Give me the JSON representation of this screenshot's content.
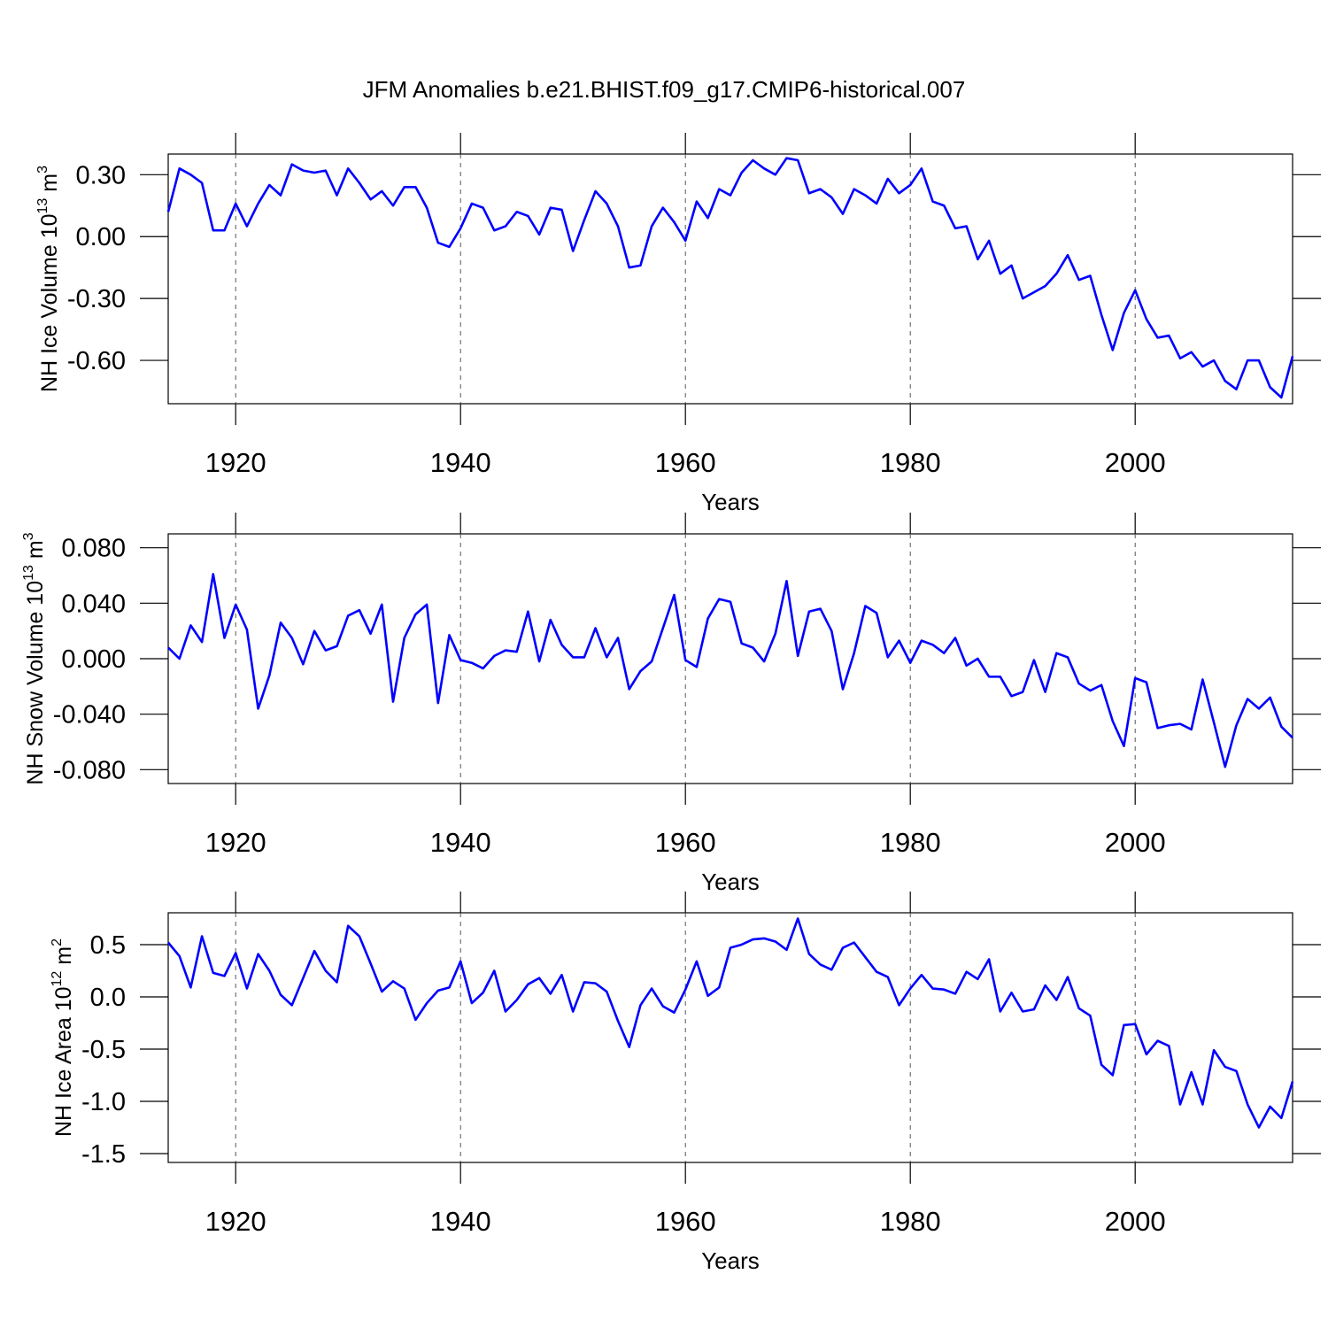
{
  "title": "JFM Anomalies b.e21.BHIST.f09_g17.CMIP6-historical.007",
  "chart_data": [
    {
      "type": "line",
      "ylabel": [
        "NH Ice Volume 10",
        "13",
        " m",
        "3"
      ],
      "xlabel": "Years",
      "color": "#0000ff",
      "grid": true,
      "x": [
        1914,
        1915,
        1916,
        1917,
        1918,
        1919,
        1920,
        1921,
        1922,
        1923,
        1924,
        1925,
        1926,
        1927,
        1928,
        1929,
        1930,
        1931,
        1932,
        1933,
        1934,
        1935,
        1936,
        1937,
        1938,
        1939,
        1940,
        1941,
        1942,
        1943,
        1944,
        1945,
        1946,
        1947,
        1948,
        1949,
        1950,
        1951,
        1952,
        1953,
        1954,
        1955,
        1956,
        1957,
        1958,
        1959,
        1960,
        1961,
        1962,
        1963,
        1964,
        1965,
        1966,
        1967,
        1968,
        1969,
        1970,
        1971,
        1972,
        1973,
        1974,
        1975,
        1976,
        1977,
        1978,
        1979,
        1980,
        1981,
        1982,
        1983,
        1984,
        1985,
        1986,
        1987,
        1988,
        1989,
        1990,
        1991,
        1992,
        1993,
        1994,
        1995,
        1996,
        1997,
        1998,
        1999,
        2000,
        2001,
        2002,
        2003,
        2004,
        2005,
        2006,
        2007,
        2008,
        2009,
        2010,
        2011,
        2012,
        2013,
        2014
      ],
      "values": [
        0.12,
        0.33,
        0.3,
        0.26,
        0.03,
        0.03,
        0.16,
        0.05,
        0.16,
        0.25,
        0.2,
        0.35,
        0.32,
        0.31,
        0.32,
        0.2,
        0.33,
        0.26,
        0.18,
        0.22,
        0.15,
        0.24,
        0.24,
        0.14,
        -0.03,
        -0.05,
        0.04,
        0.16,
        0.14,
        0.03,
        0.05,
        0.12,
        0.1,
        0.01,
        0.14,
        0.13,
        -0.07,
        0.08,
        0.22,
        0.16,
        0.05,
        -0.15,
        -0.14,
        0.05,
        0.14,
        0.07,
        -0.02,
        0.17,
        0.09,
        0.23,
        0.2,
        0.31,
        0.37,
        0.33,
        0.3,
        0.38,
        0.37,
        0.21,
        0.23,
        0.19,
        0.11,
        0.23,
        0.2,
        0.16,
        0.28,
        0.21,
        0.25,
        0.33,
        0.17,
        0.15,
        0.04,
        0.05,
        -0.11,
        -0.02,
        -0.18,
        -0.14,
        -0.3,
        -0.27,
        -0.24,
        -0.18,
        -0.09,
        -0.21,
        -0.19,
        -0.38,
        -0.55,
        -0.37,
        -0.26,
        -0.4,
        -0.49,
        -0.48,
        -0.59,
        -0.56,
        -0.63,
        -0.6,
        -0.7,
        -0.74,
        -0.6,
        -0.6,
        -0.73,
        -0.78,
        -0.58
      ],
      "xlim": [
        1914,
        2014
      ],
      "xticks": [
        1920,
        1940,
        1960,
        1980,
        2000
      ],
      "ylim": [
        -0.81,
        0.4
      ],
      "yticks": [
        {
          "value": 0.3,
          "label": "0.30"
        },
        {
          "value": 0,
          "label": "0.00"
        },
        {
          "value": -0.3,
          "label": "-0.30"
        },
        {
          "value": -0.6,
          "label": "-0.60"
        }
      ]
    },
    {
      "type": "line",
      "ylabel": [
        "NH Snow Volume 10",
        "13",
        " m",
        "3"
      ],
      "xlabel": "Years",
      "color": "#0000ff",
      "grid": true,
      "x": [
        1914,
        1915,
        1916,
        1917,
        1918,
        1919,
        1920,
        1921,
        1922,
        1923,
        1924,
        1925,
        1926,
        1927,
        1928,
        1929,
        1930,
        1931,
        1932,
        1933,
        1934,
        1935,
        1936,
        1937,
        1938,
        1939,
        1940,
        1941,
        1942,
        1943,
        1944,
        1945,
        1946,
        1947,
        1948,
        1949,
        1950,
        1951,
        1952,
        1953,
        1954,
        1955,
        1956,
        1957,
        1958,
        1959,
        1960,
        1961,
        1962,
        1963,
        1964,
        1965,
        1966,
        1967,
        1968,
        1969,
        1970,
        1971,
        1972,
        1973,
        1974,
        1975,
        1976,
        1977,
        1978,
        1979,
        1980,
        1981,
        1982,
        1983,
        1984,
        1985,
        1986,
        1987,
        1988,
        1989,
        1990,
        1991,
        1992,
        1993,
        1994,
        1995,
        1996,
        1997,
        1998,
        1999,
        2000,
        2001,
        2002,
        2003,
        2004,
        2005,
        2006,
        2007,
        2008,
        2009,
        2010,
        2011,
        2012,
        2013,
        2014
      ],
      "values": [
        0.008,
        0.0,
        0.024,
        0.012,
        0.061,
        0.015,
        0.039,
        0.021,
        -0.036,
        -0.012,
        0.026,
        0.015,
        -0.004,
        0.02,
        0.006,
        0.009,
        0.031,
        0.035,
        0.018,
        0.039,
        -0.031,
        0.015,
        0.032,
        0.039,
        -0.032,
        0.017,
        -0.001,
        -0.003,
        -0.007,
        0.002,
        0.006,
        0.005,
        0.034,
        -0.002,
        0.028,
        0.01,
        0.001,
        0.001,
        0.022,
        0.001,
        0.015,
        -0.022,
        -0.009,
        -0.002,
        0.022,
        0.046,
        -0.001,
        -0.006,
        0.029,
        0.043,
        0.041,
        0.011,
        0.008,
        -0.002,
        0.018,
        0.056,
        0.002,
        0.034,
        0.036,
        0.02,
        -0.022,
        0.004,
        0.038,
        0.033,
        0.001,
        0.013,
        -0.003,
        0.013,
        0.01,
        0.004,
        0.015,
        -0.005,
        0.0,
        -0.013,
        -0.013,
        -0.027,
        -0.024,
        -0.001,
        -0.024,
        0.004,
        0.001,
        -0.018,
        -0.023,
        -0.019,
        -0.045,
        -0.063,
        -0.014,
        -0.017,
        -0.05,
        -0.048,
        -0.047,
        -0.051,
        -0.015,
        -0.046,
        -0.078,
        -0.048,
        -0.029,
        -0.036,
        -0.028,
        -0.049,
        -0.057
      ],
      "xlim": [
        1914,
        2014
      ],
      "xticks": [
        1920,
        1940,
        1960,
        1980,
        2000
      ],
      "ylim": [
        -0.09,
        0.09
      ],
      "yticks": [
        {
          "value": 0.08,
          "label": "0.080"
        },
        {
          "value": 0.04,
          "label": "0.040"
        },
        {
          "value": 0,
          "label": "0.000"
        },
        {
          "value": -0.04,
          "label": "-0.040"
        },
        {
          "value": -0.08,
          "label": "-0.080"
        }
      ]
    },
    {
      "type": "line",
      "ylabel": [
        "NH Ice Area 10",
        "12",
        " m",
        "2"
      ],
      "xlabel": "Years",
      "color": "#0000ff",
      "grid": true,
      "x": [
        1914,
        1915,
        1916,
        1917,
        1918,
        1919,
        1920,
        1921,
        1922,
        1923,
        1924,
        1925,
        1926,
        1927,
        1928,
        1929,
        1930,
        1931,
        1932,
        1933,
        1934,
        1935,
        1936,
        1937,
        1938,
        1939,
        1940,
        1941,
        1942,
        1943,
        1944,
        1945,
        1946,
        1947,
        1948,
        1949,
        1950,
        1951,
        1952,
        1953,
        1954,
        1955,
        1956,
        1957,
        1958,
        1959,
        1960,
        1961,
        1962,
        1963,
        1964,
        1965,
        1966,
        1967,
        1968,
        1969,
        1970,
        1971,
        1972,
        1973,
        1974,
        1975,
        1976,
        1977,
        1978,
        1979,
        1980,
        1981,
        1982,
        1983,
        1984,
        1985,
        1986,
        1987,
        1988,
        1989,
        1990,
        1991,
        1992,
        1993,
        1994,
        1995,
        1996,
        1997,
        1998,
        1999,
        2000,
        2001,
        2002,
        2003,
        2004,
        2005,
        2006,
        2007,
        2008,
        2009,
        2010,
        2011,
        2012,
        2013,
        2014
      ],
      "values": [
        0.52,
        0.39,
        0.09,
        0.58,
        0.23,
        0.2,
        0.42,
        0.08,
        0.41,
        0.25,
        0.02,
        -0.08,
        0.18,
        0.44,
        0.25,
        0.14,
        0.68,
        0.58,
        0.32,
        0.05,
        0.15,
        0.08,
        -0.22,
        -0.06,
        0.06,
        0.09,
        0.34,
        -0.06,
        0.04,
        0.25,
        -0.14,
        -0.03,
        0.12,
        0.18,
        0.03,
        0.21,
        -0.14,
        0.14,
        0.13,
        0.05,
        -0.23,
        -0.48,
        -0.08,
        0.08,
        -0.09,
        -0.15,
        0.07,
        0.34,
        0.01,
        0.09,
        0.47,
        0.5,
        0.55,
        0.56,
        0.53,
        0.45,
        0.75,
        0.41,
        0.31,
        0.26,
        0.47,
        0.52,
        0.38,
        0.24,
        0.19,
        -0.08,
        0.08,
        0.21,
        0.08,
        0.07,
        0.03,
        0.24,
        0.17,
        0.36,
        -0.14,
        0.04,
        -0.14,
        -0.12,
        0.11,
        -0.03,
        0.19,
        -0.11,
        -0.18,
        -0.65,
        -0.75,
        -0.27,
        -0.26,
        -0.55,
        -0.42,
        -0.47,
        -1.03,
        -0.72,
        -1.03,
        -0.51,
        -0.67,
        -0.71,
        -1.03,
        -1.25,
        -1.05,
        -1.16,
        -0.81
      ],
      "xlim": [
        1914,
        2014
      ],
      "xticks": [
        1920,
        1940,
        1960,
        1980,
        2000
      ],
      "ylim": [
        -1.585,
        0.805
      ],
      "yticks": [
        0.5,
        {
          "value": 0,
          "label": "0.0"
        },
        -0.5,
        {
          "value": -1,
          "label": "-1.0"
        },
        -1.5
      ]
    }
  ]
}
